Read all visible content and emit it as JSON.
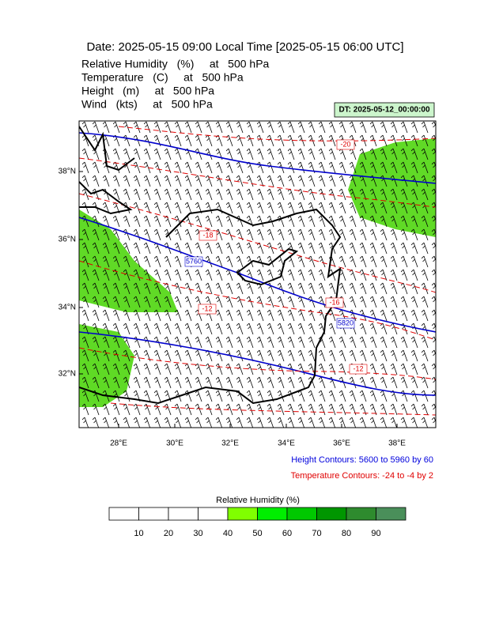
{
  "header": {
    "title": "Date: 2025-05-15  09:00 Local Time [2025-05-15  06:00 UTC]",
    "fields": [
      "Relative Humidity   (%)     at   500 hPa",
      "Temperature   (C)     at   500 hPa",
      "Height   (m)     at   500 hPa",
      "Wind   (kts)     at   500 hPa"
    ],
    "dt": "DT: 2025-05-12_00:00:00"
  },
  "map": {
    "lat_labels": [
      "38°N",
      "36°N",
      "34°N",
      "32°N"
    ],
    "lon_labels": [
      "28°E",
      "30°E",
      "32°E",
      "34°E",
      "36°E",
      "38°E"
    ],
    "contour_labels": [
      "-20",
      "-18",
      "5760",
      "-12",
      "-16",
      "5820",
      "-12"
    ]
  },
  "notes": {
    "height": "Height Contours: 5600 to 5960 by 60",
    "temperature": "Temperature Contours: -24 to -4 by 2"
  },
  "colorbar": {
    "title": "Relative Humidity  (%)",
    "labels": [
      "10",
      "20",
      "30",
      "40",
      "50",
      "60",
      "70",
      "80",
      "90"
    ],
    "colors": [
      "#ffffff",
      "#ffffff",
      "#ffffff",
      "#ffffff",
      "#80ff00",
      "#00ee00",
      "#00c800",
      "#009600",
      "#2e8b2e",
      "#4a8f5a"
    ]
  }
}
